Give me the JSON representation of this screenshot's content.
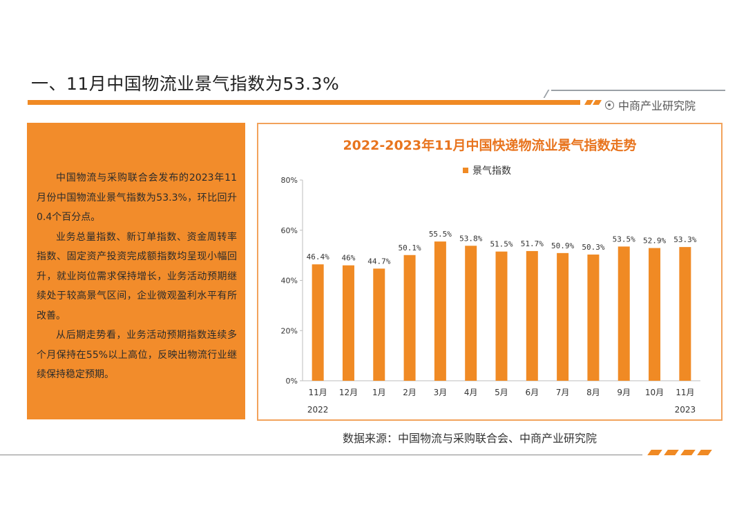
{
  "header": {
    "title": "一、11月中国物流业景气指数为53.3%",
    "brand": "中商产业研究院"
  },
  "text_panel": {
    "paragraphs": [
      "中国物流与采购联合会发布的2023年11月份中国物流业景气指数为53.3%，环比回升0.4个百分点。",
      "业务总量指数、新订单指数、资金周转率指数、固定资产投资完成额指数均呈现小幅回升，就业岗位需求保持增长，业务活动预期继续处于较高景气区间，企业微观盈利水平有所改善。",
      "从后期走势看，业务活动预期指数连续多个月保持在55%以上高位，反映出物流行业继续保持稳定预期。"
    ]
  },
  "footer": {
    "source": "数据来源：中国物流与采购联合会、中商产业研究院"
  },
  "colors": {
    "accent": "#f08a24",
    "title_orange": "#e8741e"
  },
  "chart_data": {
    "type": "bar",
    "title": "2022-2023年11月中国快递物流业景气指数走势",
    "legend": [
      "景气指数"
    ],
    "legend_position": "top-center",
    "categories": [
      "11月",
      "12月",
      "1月",
      "2月",
      "3月",
      "4月",
      "5月",
      "6月",
      "7月",
      "8月",
      "9月",
      "10月",
      "11月"
    ],
    "values": [
      46.4,
      46,
      44.7,
      50.1,
      55.5,
      53.8,
      51.5,
      51.7,
      50.9,
      50.3,
      53.5,
      52.9,
      53.3
    ],
    "value_labels": [
      "46.4%",
      "46%",
      "44.7%",
      "50.1%",
      "55.5%",
      "53.8%",
      "51.5%",
      "51.7%",
      "50.9%",
      "50.3%",
      "53.5%",
      "52.9%",
      "53.3%"
    ],
    "year_labels": [
      "2022",
      "2023"
    ],
    "y_ticks": [
      0,
      20,
      40,
      60,
      80
    ],
    "y_tick_labels": [
      "0%",
      "20%",
      "40%",
      "60%",
      "80%"
    ],
    "ylim": [
      0,
      80
    ],
    "xlabel": "",
    "ylabel": "",
    "grid": false
  }
}
